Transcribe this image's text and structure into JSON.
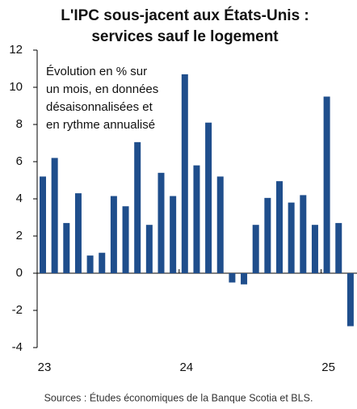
{
  "chart_data": {
    "type": "bar",
    "title": [
      "L'IPC sous-jacent aux États-Unis :",
      "services sauf le logement"
    ],
    "annotation": [
      "Évolution en % sur",
      "un mois, en données",
      "désaisonnalisées et",
      "en rythme annualisé"
    ],
    "source": "Sources : Études économiques de la Banque Scotia et BLS.",
    "categories": [
      "23",
      null,
      null,
      null,
      null,
      null,
      null,
      null,
      null,
      null,
      null,
      null,
      "24",
      null,
      null,
      null,
      null,
      null,
      null,
      null,
      null,
      null,
      null,
      null,
      "25",
      null,
      null
    ],
    "values": [
      5.2,
      6.2,
      2.7,
      4.3,
      0.95,
      1.1,
      4.15,
      3.6,
      7.05,
      2.6,
      5.4,
      4.15,
      10.7,
      5.8,
      8.1,
      5.2,
      -0.5,
      -0.6,
      2.6,
      4.05,
      4.95,
      3.8,
      4.2,
      2.6,
      9.5,
      2.7,
      -2.85
    ],
    "color": "#1f4e8c",
    "ylim": [
      -4,
      12
    ],
    "yticks": [
      -4,
      -2,
      0,
      2,
      4,
      6,
      8,
      10,
      12
    ]
  }
}
